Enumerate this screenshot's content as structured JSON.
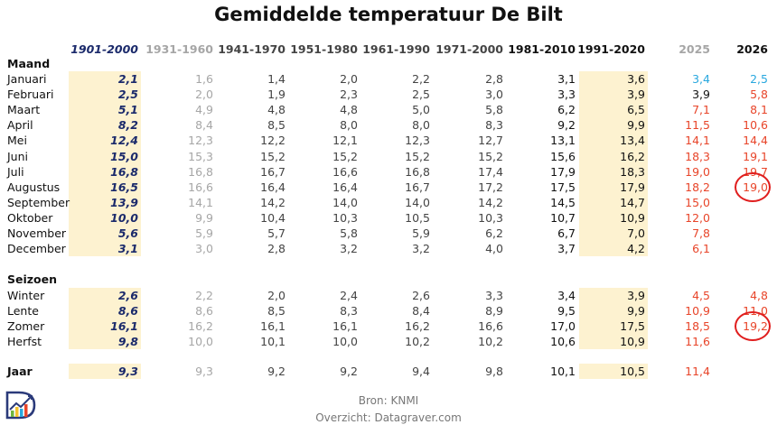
{
  "title": "Gemiddelde temperatuur De Bilt",
  "section_labels": {
    "month": "Maand",
    "season": "Seizoen",
    "year": "Jaar"
  },
  "colors": {
    "base_period": "#1b2a6b",
    "old_period": "#a6a6a6",
    "normal_text": "#444444",
    "bold_text": "#111111",
    "above_normal": "#e8452a",
    "below_normal": "#29a8df",
    "highlight_fill": "#fdf2d0",
    "circle": "#e01e1e"
  },
  "chart_data": {
    "type": "table",
    "title": "Gemiddelde temperatuur De Bilt",
    "columns": [
      "1901-2000",
      "1931-1960",
      "1941-1970",
      "1951-1980",
      "1961-1990",
      "1971-2000",
      "1981-2010",
      "1991-2020",
      "2025",
      "2026"
    ],
    "sections": [
      {
        "name": "Maand",
        "rows": [
          {
            "label": "Januari",
            "values": [
              "2,1",
              "1,6",
              "1,4",
              "2,0",
              "2,2",
              "2,8",
              "3,1",
              "3,6",
              "3,4",
              "2,5"
            ]
          },
          {
            "label": "Februari",
            "values": [
              "2,5",
              "2,0",
              "1,9",
              "2,3",
              "2,5",
              "3,0",
              "3,3",
              "3,9",
              "3,9",
              "5,8"
            ]
          },
          {
            "label": "Maart",
            "values": [
              "5,1",
              "4,9",
              "4,8",
              "4,8",
              "5,0",
              "5,8",
              "6,2",
              "6,5",
              "7,1",
              "8,1"
            ]
          },
          {
            "label": "April",
            "values": [
              "8,2",
              "8,4",
              "8,5",
              "8,0",
              "8,0",
              "8,3",
              "9,2",
              "9,9",
              "11,5",
              "10,6"
            ]
          },
          {
            "label": "Mei",
            "values": [
              "12,4",
              "12,3",
              "12,2",
              "12,1",
              "12,3",
              "12,7",
              "13,1",
              "13,4",
              "14,1",
              "14,4"
            ]
          },
          {
            "label": "Juni",
            "values": [
              "15,0",
              "15,3",
              "15,2",
              "15,2",
              "15,2",
              "15,2",
              "15,6",
              "16,2",
              "18,3",
              "19,1"
            ]
          },
          {
            "label": "Juli",
            "values": [
              "16,8",
              "16,8",
              "16,7",
              "16,6",
              "16,8",
              "17,4",
              "17,9",
              "18,3",
              "19,0",
              "19,7"
            ]
          },
          {
            "label": "Augustus",
            "values": [
              "16,5",
              "16,6",
              "16,4",
              "16,4",
              "16,7",
              "17,2",
              "17,5",
              "17,9",
              "18,2",
              "19,0"
            ]
          },
          {
            "label": "September",
            "values": [
              "13,9",
              "14,1",
              "14,2",
              "14,0",
              "14,0",
              "14,2",
              "14,5",
              "14,7",
              "15,0",
              ""
            ]
          },
          {
            "label": "Oktober",
            "values": [
              "10,0",
              "9,9",
              "10,4",
              "10,3",
              "10,5",
              "10,3",
              "10,7",
              "10,9",
              "12,0",
              ""
            ]
          },
          {
            "label": "November",
            "values": [
              "5,6",
              "5,9",
              "5,7",
              "5,8",
              "5,9",
              "6,2",
              "6,7",
              "7,0",
              "7,8",
              ""
            ]
          },
          {
            "label": "December",
            "values": [
              "3,1",
              "3,0",
              "2,8",
              "3,2",
              "3,2",
              "4,0",
              "3,7",
              "4,2",
              "6,1",
              ""
            ]
          }
        ]
      },
      {
        "name": "Seizoen",
        "rows": [
          {
            "label": "Winter",
            "values": [
              "2,6",
              "2,2",
              "2,0",
              "2,4",
              "2,6",
              "3,3",
              "3,4",
              "3,9",
              "4,5",
              "4,8"
            ]
          },
          {
            "label": "Lente",
            "values": [
              "8,6",
              "8,6",
              "8,5",
              "8,3",
              "8,4",
              "8,9",
              "9,5",
              "9,9",
              "10,9",
              "11,0"
            ]
          },
          {
            "label": "Zomer",
            "values": [
              "16,1",
              "16,2",
              "16,1",
              "16,1",
              "16,2",
              "16,6",
              "17,0",
              "17,5",
              "18,5",
              "19,2"
            ]
          },
          {
            "label": "Herfst",
            "values": [
              "9,8",
              "10,0",
              "10,1",
              "10,0",
              "10,2",
              "10,2",
              "10,6",
              "10,9",
              "11,6",
              ""
            ]
          }
        ]
      },
      {
        "name": "",
        "rows": [
          {
            "label": "Jaar",
            "values": [
              "9,3",
              "9,3",
              "9,2",
              "9,2",
              "9,4",
              "9,8",
              "10,1",
              "10,5",
              "11,4",
              ""
            ]
          }
        ]
      }
    ],
    "value_colors": {
      "2025": [
        "above_normal",
        "below_normal",
        "normal_text",
        "above_normal"
      ],
      "note": "per-cell colors defined in script"
    },
    "circled_cells": [
      {
        "row": "Augustus",
        "column": "2026"
      },
      {
        "row": "Zomer",
        "column": "2026"
      }
    ]
  },
  "footer": {
    "source": "Bron: KNMI",
    "overview": "Overzicht: Datagraver.com"
  },
  "logo": {
    "icon": "datagraver-logo-icon"
  }
}
